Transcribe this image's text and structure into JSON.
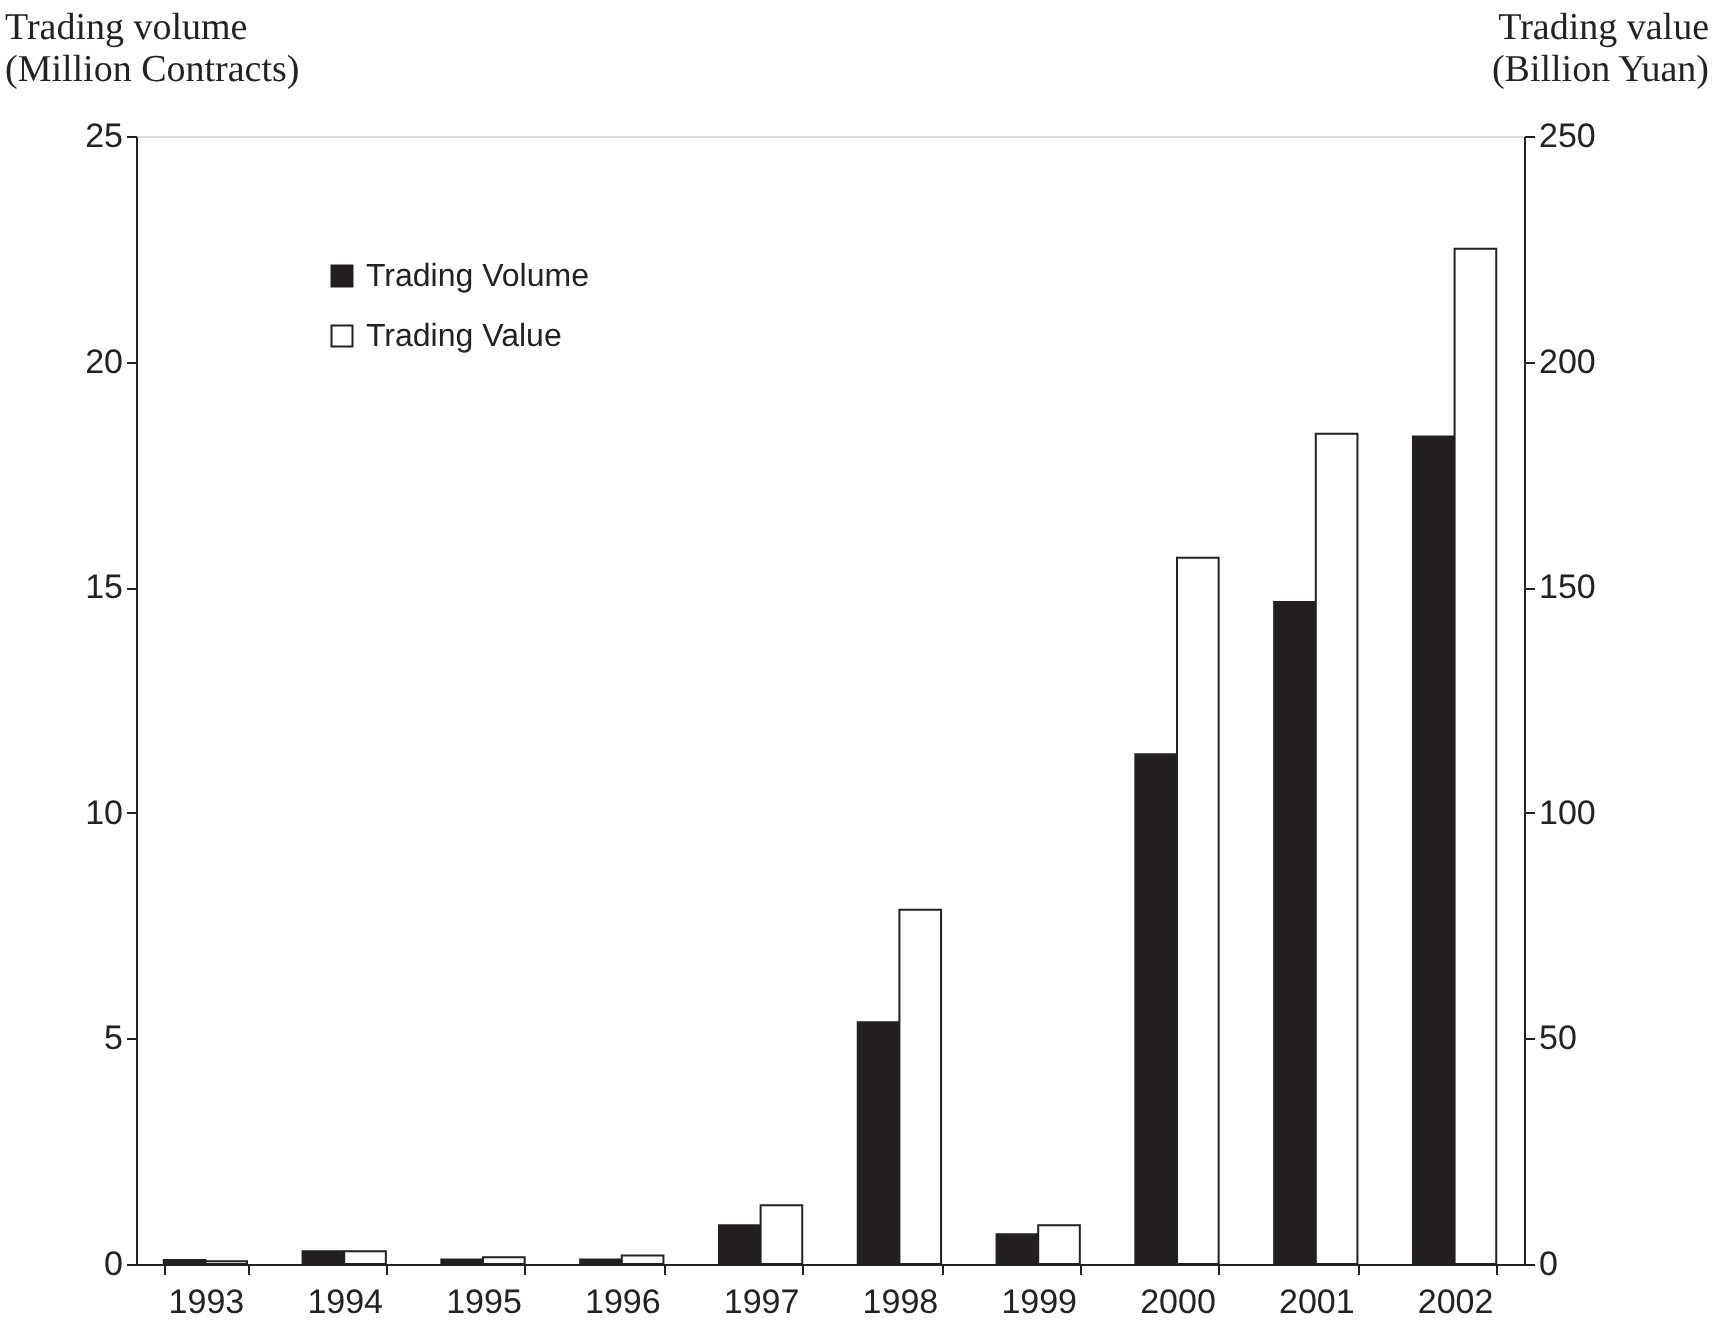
{
  "chart_data": {
    "type": "bar",
    "ylabel": "Trading volume\n(Million Contracts)",
    "y2label": "Trading value\n(Billion Yuan)",
    "categories": [
      "1993",
      "1994",
      "1995",
      "1996",
      "1997",
      "1998",
      "1999",
      "2000",
      "2001",
      "2002"
    ],
    "series": [
      {
        "name": "Trading Volume",
        "color": "#231f20",
        "values": [
          0.09,
          0.28,
          0.1,
          0.1,
          0.86,
          5.36,
          0.66,
          11.3,
          14.67,
          18.34
        ]
      },
      {
        "name": "Trading Value",
        "color": "#ffffff",
        "axis": "y2",
        "values": [
          0.6,
          2.8,
          1.5,
          1.9,
          13,
          78.5,
          8.6,
          156.5,
          184,
          225
        ]
      }
    ],
    "ylim": [
      0,
      25
    ],
    "yticks": [
      0,
      5,
      10,
      15,
      20,
      25
    ],
    "y2lim": [
      0,
      250
    ],
    "y2ticks": [
      0,
      50,
      100,
      150,
      200,
      250
    ],
    "legend": "top left",
    "grid": false
  }
}
